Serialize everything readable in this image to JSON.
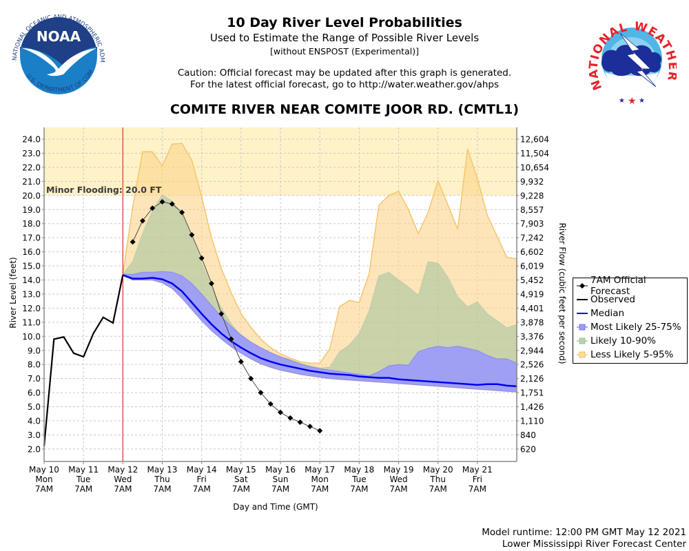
{
  "header": {
    "title": "10 Day River Level Probabilities",
    "subtitle": "Used to Estimate the Range of Possible River Levels",
    "subtitle2": "[without ENSPOST (Experimental)]",
    "caution1": "Caution: Official forecast may be updated after this graph is generated.",
    "caution2": "For the latest official forecast, go to http://water.weather.gov/ahps",
    "station": "COMITE RIVER NEAR COMITE JOOR RD. (CMTL1)"
  },
  "logos": {
    "left": "noaa-logo",
    "right": "nws-logo",
    "noaa_text": "NOAA",
    "noaa_ring_top": "NATIONAL OCEANIC AND ATMOSPHERIC ADMINISTRATION",
    "noaa_ring_bottom": "U.S. DEPARTMENT OF COMMERCE",
    "nws_ring": "NATIONAL WEATHER SERVICE"
  },
  "footer": {
    "runtime": "Model runtime: 12:00 PM GMT May 12 2021",
    "center": "Lower Mississippi River Forecast Center"
  },
  "colors": {
    "less_likely": "#f7c46c",
    "likely": "#a9c4a0",
    "most_likely": "#9c9cf8",
    "median": "#0000ee",
    "observed": "#000000",
    "forecast": "#000000",
    "flood_zone": "#fff2c8",
    "current_time": "#e03030"
  },
  "chart_data": {
    "type": "area",
    "title": "10 Day River Level Probabilities",
    "xlabel": "Day and Time (GMT)",
    "ylabel": "River Level (feet)",
    "y2label": "River Flow (cubic feet per second)",
    "x_unit": "days since May 10 7AM GMT",
    "xlim": [
      0,
      12
    ],
    "ylim": [
      1.1,
      24.8
    ],
    "grid": true,
    "legend_position": "right",
    "current_time_x": 2.0,
    "flood_stage": {
      "label": "Minor Flooding: 20.0 FT",
      "value": 20.0
    },
    "x_ticks": [
      {
        "x": 0,
        "date": "May 10",
        "day": "Mon",
        "time": "7AM"
      },
      {
        "x": 1,
        "date": "May 11",
        "day": "Tue",
        "time": "7AM"
      },
      {
        "x": 2,
        "date": "May 12",
        "day": "Wed",
        "time": "7AM"
      },
      {
        "x": 3,
        "date": "May 13",
        "day": "Thu",
        "time": "7AM"
      },
      {
        "x": 4,
        "date": "May 14",
        "day": "Fri",
        "time": "7AM"
      },
      {
        "x": 5,
        "date": "May 15",
        "day": "Sat",
        "time": "7AM"
      },
      {
        "x": 6,
        "date": "May 16",
        "day": "Sun",
        "time": "7AM"
      },
      {
        "x": 7,
        "date": "May 17",
        "day": "Mon",
        "time": "7AM"
      },
      {
        "x": 8,
        "date": "May 18",
        "day": "Tue",
        "time": "7AM"
      },
      {
        "x": 9,
        "date": "May 19",
        "day": "Wed",
        "time": "7AM"
      },
      {
        "x": 10,
        "date": "May 20",
        "day": "Thu",
        "time": "7AM"
      },
      {
        "x": 11,
        "date": "May 21",
        "day": "Fri",
        "time": "7AM"
      }
    ],
    "y_ticks": [
      {
        "stage": 24.0,
        "label": "24.0",
        "flow": "12,604"
      },
      {
        "stage": 23.0,
        "label": "23.0",
        "flow": "11,504"
      },
      {
        "stage": 22.0,
        "label": "22.0",
        "flow": "10,654"
      },
      {
        "stage": 21.0,
        "label": "21.0",
        "flow": "9,932"
      },
      {
        "stage": 20.0,
        "label": "20.0",
        "flow": "9,228"
      },
      {
        "stage": 19.0,
        "label": "19.0",
        "flow": "8,557"
      },
      {
        "stage": 18.0,
        "label": "18.0",
        "flow": "7,903"
      },
      {
        "stage": 17.0,
        "label": "17.0",
        "flow": "7,242"
      },
      {
        "stage": 16.0,
        "label": "16.0",
        "flow": "6,602"
      },
      {
        "stage": 15.0,
        "label": "15.0",
        "flow": "6,019"
      },
      {
        "stage": 14.0,
        "label": "14.0",
        "flow": "5,452"
      },
      {
        "stage": 13.0,
        "label": "13.0",
        "flow": "4,919"
      },
      {
        "stage": 12.0,
        "label": "12.0",
        "flow": "4,401"
      },
      {
        "stage": 11.0,
        "label": "11.0",
        "flow": "3,878"
      },
      {
        "stage": 10.0,
        "label": "10.0",
        "flow": "3,376"
      },
      {
        "stage": 9.0,
        "label": "9.0",
        "flow": "2,944"
      },
      {
        "stage": 8.0,
        "label": "8.0",
        "flow": "2,526"
      },
      {
        "stage": 7.0,
        "label": "7.0",
        "flow": "2,126"
      },
      {
        "stage": 6.0,
        "label": "6.0",
        "flow": "1,751"
      },
      {
        "stage": 5.0,
        "label": "5.0",
        "flow": "1,426"
      },
      {
        "stage": 4.0,
        "label": "4.0",
        "flow": "1,110"
      },
      {
        "stage": 3.0,
        "label": "3.0",
        "flow": "840"
      },
      {
        "stage": 2.0,
        "label": "2.0",
        "flow": "620"
      }
    ],
    "band_x": [
      2.0,
      2.25,
      2.5,
      2.75,
      3.0,
      3.25,
      3.5,
      3.75,
      4.0,
      4.25,
      4.5,
      4.75,
      5.0,
      5.25,
      5.5,
      5.75,
      6.0,
      6.25,
      6.5,
      6.75,
      7.0,
      7.25,
      7.5,
      7.75,
      8.0,
      8.25,
      8.5,
      8.75,
      9.0,
      9.25,
      9.5,
      9.75,
      10.0,
      10.25,
      10.5,
      10.75,
      11.0,
      11.25,
      11.5,
      11.75,
      12.0
    ],
    "series": [
      {
        "name": "Less Likely 5-95%",
        "upper": [
          14.4,
          19.2,
          23.1,
          23.1,
          22.1,
          23.65,
          23.7,
          22.5,
          19.9,
          17.0,
          14.8,
          13.1,
          11.6,
          10.65,
          9.8,
          9.2,
          8.75,
          8.45,
          8.2,
          8.1,
          8.1,
          9.1,
          12.1,
          12.55,
          12.4,
          14.45,
          19.3,
          20.0,
          20.3,
          19.0,
          17.3,
          18.8,
          21.05,
          19.35,
          17.6,
          23.3,
          21.2,
          18.6,
          17.1,
          15.6,
          15.5
        ],
        "lower": [
          14.3,
          14.0,
          14.0,
          14.0,
          13.8,
          13.4,
          12.8,
          12.0,
          11.2,
          10.5,
          9.85,
          9.3,
          8.8,
          8.4,
          8.05,
          7.8,
          7.6,
          7.45,
          7.3,
          7.2,
          7.1,
          7.0,
          6.95,
          6.9,
          6.85,
          6.8,
          6.75,
          6.7,
          6.65,
          6.6,
          6.55,
          6.5,
          6.45,
          6.4,
          6.35,
          6.3,
          6.25,
          6.2,
          6.15,
          6.1,
          6.05
        ]
      },
      {
        "name": "Likely 10-90%",
        "upper": [
          14.4,
          15.3,
          17.3,
          18.9,
          20.05,
          19.6,
          18.6,
          17.0,
          15.2,
          13.5,
          12.0,
          10.9,
          10.0,
          9.45,
          9.05,
          8.8,
          8.55,
          8.35,
          8.1,
          7.9,
          7.75,
          7.8,
          8.9,
          9.4,
          10.2,
          11.8,
          14.3,
          14.55,
          14.0,
          13.5,
          12.9,
          15.3,
          15.2,
          14.2,
          12.8,
          12.1,
          12.45,
          11.6,
          11.1,
          10.6,
          10.85
        ],
        "lower": [
          14.35,
          14.05,
          14.05,
          14.05,
          13.85,
          13.45,
          12.85,
          12.05,
          11.25,
          10.55,
          9.9,
          9.35,
          8.85,
          8.45,
          8.1,
          7.85,
          7.65,
          7.5,
          7.35,
          7.25,
          7.15,
          7.05,
          7.0,
          6.95,
          6.9,
          6.85,
          6.8,
          6.75,
          6.7,
          6.65,
          6.6,
          6.55,
          6.5,
          6.45,
          6.4,
          6.35,
          6.3,
          6.25,
          6.2,
          6.15,
          6.1
        ]
      },
      {
        "name": "Most Likely 25-75%",
        "upper": [
          14.4,
          14.4,
          14.55,
          14.55,
          14.6,
          14.55,
          14.3,
          13.75,
          13.0,
          12.2,
          11.4,
          10.7,
          10.1,
          9.6,
          9.2,
          8.85,
          8.55,
          8.3,
          8.05,
          7.85,
          7.7,
          7.6,
          7.5,
          7.4,
          7.3,
          7.2,
          7.5,
          7.9,
          8.0,
          7.95,
          8.9,
          9.15,
          9.3,
          9.2,
          9.3,
          9.15,
          9.0,
          8.65,
          8.4,
          8.4,
          8.1
        ],
        "lower": [
          14.35,
          14.0,
          14.0,
          14.0,
          13.8,
          13.4,
          12.7,
          11.9,
          11.1,
          10.4,
          9.8,
          9.25,
          8.8,
          8.4,
          8.05,
          7.8,
          7.6,
          7.45,
          7.3,
          7.2,
          7.1,
          7.0,
          6.95,
          6.9,
          6.85,
          6.8,
          6.75,
          6.7,
          6.65,
          6.6,
          6.55,
          6.5,
          6.45,
          6.4,
          6.35,
          6.3,
          6.25,
          6.2,
          6.15,
          6.1,
          6.05
        ]
      },
      {
        "name": "Median",
        "values": [
          14.35,
          14.1,
          14.1,
          14.15,
          14.05,
          13.75,
          13.2,
          12.4,
          11.6,
          10.85,
          10.2,
          9.65,
          9.2,
          8.8,
          8.45,
          8.2,
          8.0,
          7.85,
          7.7,
          7.55,
          7.45,
          7.35,
          7.3,
          7.25,
          7.15,
          7.1,
          7.05,
          7.05,
          6.95,
          6.9,
          6.85,
          6.8,
          6.75,
          6.7,
          6.65,
          6.6,
          6.55,
          6.6,
          6.6,
          6.5,
          6.45
        ]
      },
      {
        "name": "Observed",
        "x": [
          0,
          0.25,
          0.5,
          0.75,
          1.0,
          1.25,
          1.5,
          1.75,
          2.0
        ],
        "values": [
          2.2,
          9.8,
          9.95,
          8.8,
          8.55,
          10.2,
          11.35,
          10.95,
          14.35
        ]
      },
      {
        "name": "7AM Official Forecast",
        "x": [
          2.25,
          2.5,
          2.75,
          3.0,
          3.25,
          3.5,
          3.75,
          4.0,
          4.25,
          4.5,
          4.75,
          5.0,
          5.25,
          5.5,
          5.75,
          6.0,
          6.25,
          6.5,
          6.75,
          7.0
        ],
        "values": [
          16.7,
          18.2,
          19.1,
          19.55,
          19.4,
          18.8,
          17.2,
          15.55,
          13.75,
          11.6,
          9.8,
          8.2,
          7.0,
          6.0,
          5.2,
          4.6,
          4.2,
          3.9,
          3.6,
          3.3
        ]
      }
    ]
  },
  "legend": {
    "items": [
      {
        "label": "7AM Official Forecast",
        "kind": "diamond-line"
      },
      {
        "label": "Observed",
        "kind": "line"
      },
      {
        "label": "Median",
        "kind": "line"
      },
      {
        "label": "Most Likely 25-75%",
        "kind": "box"
      },
      {
        "label": "Likely 10-90%",
        "kind": "box"
      },
      {
        "label": "Less Likely 5-95%",
        "kind": "box"
      }
    ]
  }
}
